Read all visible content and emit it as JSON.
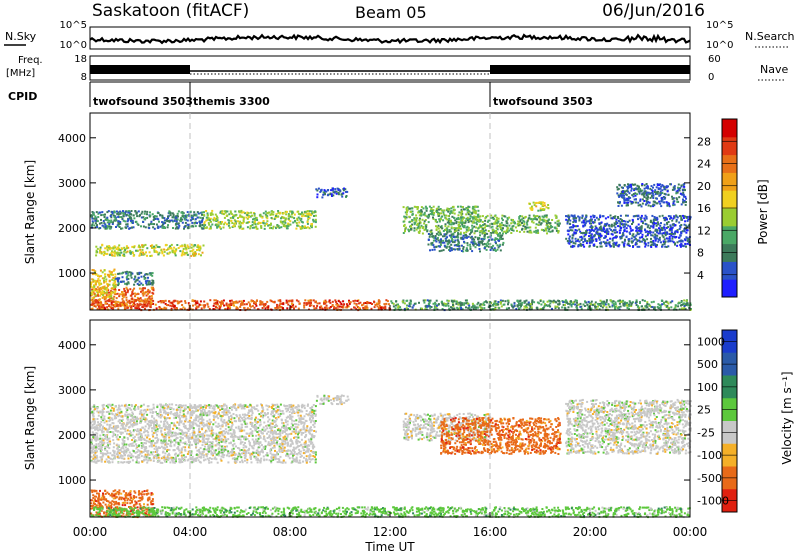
{
  "header": {
    "station": "Saskatoon (fitACF)",
    "beam": "Beam 05",
    "date": "06/Jun/2016"
  },
  "noise_panel": {
    "left_label": "N.Sky",
    "right_label": "N.Search",
    "left_ticks": [
      "10^5",
      "10^0"
    ],
    "right_ticks": [
      "10^5",
      "10^0"
    ]
  },
  "freq_panel": {
    "left_label_top": "Freq.",
    "left_label_bottom": "[MHz]",
    "right_label": "Nave",
    "left_ticks": [
      "18",
      "8"
    ],
    "right_ticks": [
      "60",
      "0"
    ]
  },
  "cpid_panel": {
    "label": "CPID",
    "segments": [
      {
        "name": "twofsound 3503",
        "start_hour": 0,
        "end_hour": 4
      },
      {
        "name": "themis 3300",
        "start_hour": 4,
        "end_hour": 16
      },
      {
        "name": "twofsound 3503",
        "start_hour": 16,
        "end_hour": 24
      }
    ]
  },
  "x_axis": {
    "label": "Time UT",
    "ticks": [
      "00:00",
      "04:00",
      "08:00",
      "12:00",
      "16:00",
      "20:00",
      "00:00"
    ],
    "tick_hours": [
      0,
      4,
      8,
      12,
      16,
      20,
      24
    ],
    "marker_hours": [
      4,
      16
    ]
  },
  "power_panel": {
    "ylabel": "Slant Range [km]",
    "yticks": [
      "1000",
      "2000",
      "3000",
      "4000"
    ],
    "ytick_values": [
      1000,
      2000,
      3000,
      4000
    ],
    "colorbar": {
      "label": "Power [dB]",
      "ticks": [
        "4",
        "8",
        "12",
        "16",
        "20",
        "24",
        "28"
      ],
      "tick_values": [
        4,
        8,
        12,
        16,
        20,
        24,
        28
      ],
      "range": [
        0,
        32
      ],
      "colors": [
        "#1f1fff",
        "#2a52c8",
        "#3c7a5a",
        "#4aa866",
        "#9acd32",
        "#f0d020",
        "#f0a018",
        "#e87018",
        "#e03a14",
        "#d40000"
      ]
    }
  },
  "velocity_panel": {
    "ylabel": "Slant Range [km]",
    "yticks": [
      "1000",
      "2000",
      "3000",
      "4000"
    ],
    "ytick_values": [
      1000,
      2000,
      3000,
      4000
    ],
    "colorbar": {
      "label": "Velocity [m s⁻¹]",
      "ticks": [
        "1000",
        "500",
        "100",
        "25",
        "-25",
        "-100",
        "-500",
        "-1000"
      ],
      "colors": [
        "#1a3ccc",
        "#2a5aa8",
        "#2e8a5a",
        "#5cc83c",
        "#c8c8c8",
        "#f5b028",
        "#e86a18",
        "#e02010"
      ]
    }
  },
  "chart_data": [
    {
      "type": "heatmap",
      "title": "Saskatoon (fitACF) Beam 05 06/Jun/2016",
      "xlabel": "Time UT",
      "ylabel": "Slant Range [km]",
      "colorbar_label": "Power [dB]",
      "xlim_hours": [
        0,
        24
      ],
      "ylim_km": [
        180,
        4550
      ],
      "value_range": [
        0,
        32
      ],
      "features": [
        {
          "x": [
            0.0,
            12.0
          ],
          "y": [
            200,
            420
          ],
          "value": 26
        },
        {
          "x": [
            0.0,
            2.5
          ],
          "y": [
            300,
            700
          ],
          "value": 24
        },
        {
          "x": [
            0.0,
            1.0
          ],
          "y": [
            450,
            1100
          ],
          "value": 18
        },
        {
          "x": [
            1.0,
            2.5
          ],
          "y": [
            750,
            1050
          ],
          "value": 8
        },
        {
          "x": [
            0.2,
            4.5
          ],
          "y": [
            1400,
            1650
          ],
          "value": 16
        },
        {
          "x": [
            4.5,
            9.0
          ],
          "y": [
            2000,
            2400
          ],
          "value": 14
        },
        {
          "x": [
            0.0,
            4.5
          ],
          "y": [
            2000,
            2400
          ],
          "value": 8
        },
        {
          "x": [
            9.0,
            10.3
          ],
          "y": [
            2700,
            2900
          ],
          "value": 6
        },
        {
          "x": [
            12.0,
            24.0
          ],
          "y": [
            200,
            420
          ],
          "value": 10
        },
        {
          "x": [
            12.5,
            15.5
          ],
          "y": [
            1900,
            2500
          ],
          "value": 12
        },
        {
          "x": [
            13.5,
            16.5
          ],
          "y": [
            1500,
            1900
          ],
          "value": 8
        },
        {
          "x": [
            15.5,
            18.8
          ],
          "y": [
            1900,
            2300
          ],
          "value": 12
        },
        {
          "x": [
            17.5,
            18.3
          ],
          "y": [
            2400,
            2600
          ],
          "value": 16
        },
        {
          "x": [
            19.0,
            24.0
          ],
          "y": [
            1600,
            2300
          ],
          "value": 5
        },
        {
          "x": [
            21.0,
            23.8
          ],
          "y": [
            2500,
            3000
          ],
          "value": 6
        }
      ]
    },
    {
      "type": "heatmap",
      "title": "Saskatoon (fitACF) Beam 05 06/Jun/2016",
      "xlabel": "Time UT",
      "ylabel": "Slant Range [km]",
      "colorbar_label": "Velocity [m s⁻¹]",
      "xlim_hours": [
        0,
        24
      ],
      "ylim_km": [
        180,
        4550
      ],
      "value_range": [
        -1000,
        1000
      ],
      "features": [
        {
          "x": [
            0.0,
            2.5
          ],
          "y": [
            200,
            800
          ],
          "value": -300
        },
        {
          "x": [
            0.0,
            12.0
          ],
          "y": [
            200,
            420
          ],
          "value": 60
        },
        {
          "x": [
            0.0,
            9.0
          ],
          "y": [
            1400,
            2700
          ],
          "value": 0
        },
        {
          "x": [
            9.0,
            10.3
          ],
          "y": [
            2700,
            2900
          ],
          "value": 0
        },
        {
          "x": [
            12.0,
            24.0
          ],
          "y": [
            200,
            420
          ],
          "value": 60
        },
        {
          "x": [
            12.5,
            16.0
          ],
          "y": [
            1900,
            2500
          ],
          "value": 0
        },
        {
          "x": [
            14.0,
            18.8
          ],
          "y": [
            1600,
            2400
          ],
          "value": -300
        },
        {
          "x": [
            19.0,
            24.0
          ],
          "y": [
            1600,
            2800
          ],
          "value": 0
        }
      ]
    }
  ]
}
